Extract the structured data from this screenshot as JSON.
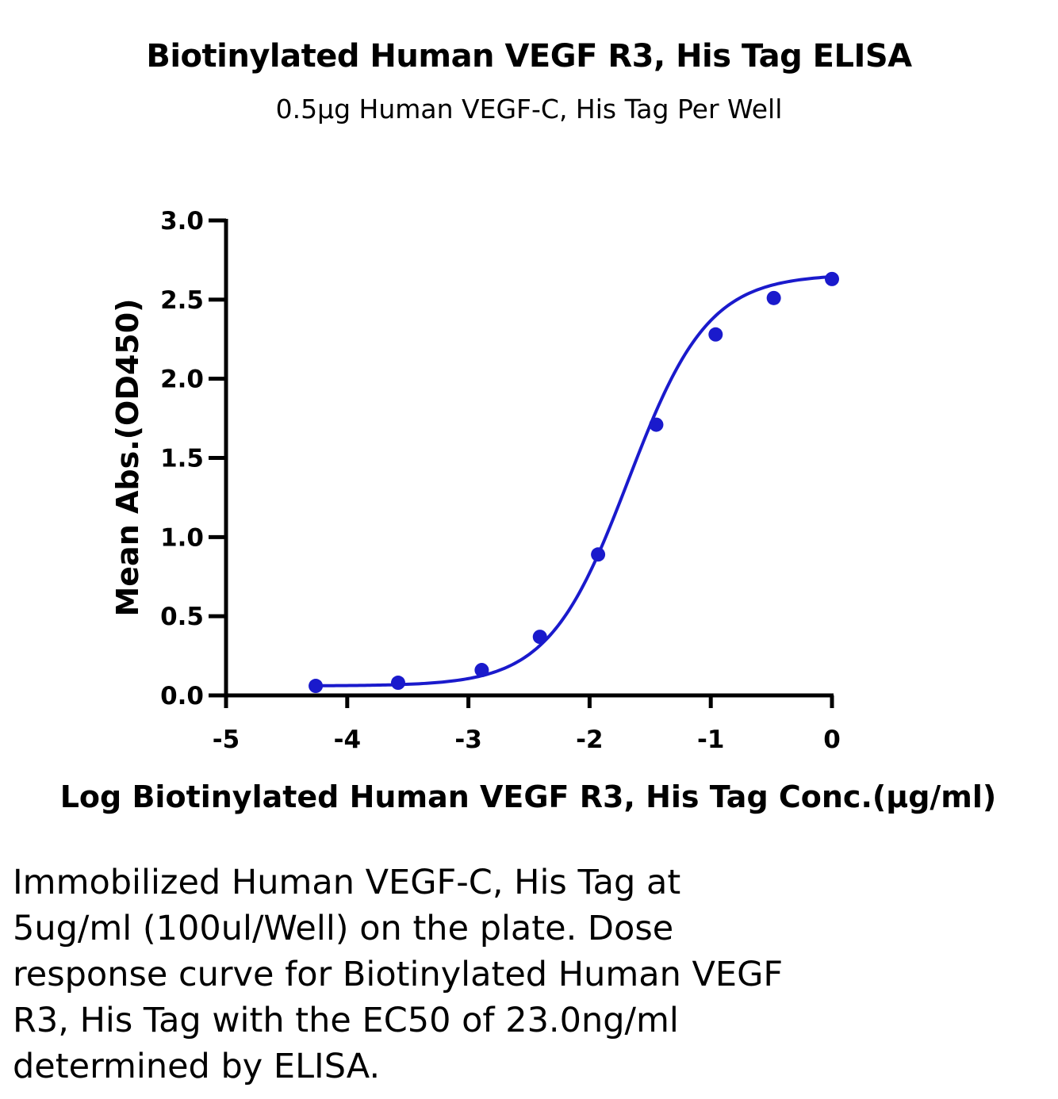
{
  "chart_data": {
    "type": "scatter",
    "title": "Biotinylated Human VEGF R3, His Tag ELISA",
    "subtitle": "0.5μg Human VEGF-C, His Tag Per Well",
    "xlabel": "Log Biotinylated Human VEGF R3, His Tag Conc.(μg/ml)",
    "ylabel": "Mean Abs.(OD450)",
    "xlim": [
      -5,
      0
    ],
    "ylim": [
      0,
      3.0
    ],
    "x_ticks": [
      "-5",
      "-4",
      "-3",
      "-2",
      "-1",
      "0"
    ],
    "y_ticks": [
      "0.0",
      "0.5",
      "1.0",
      "1.5",
      "2.0",
      "2.5",
      "3.0"
    ],
    "grid": false,
    "fit": "four-parameter logistic curve",
    "color": "#1a1acc",
    "series": [
      {
        "x": [
          -4.26,
          -3.58,
          -2.89,
          -2.41,
          -1.93,
          -1.45,
          -0.96,
          -0.48,
          0.0
        ],
        "y": [
          0.06,
          0.08,
          0.16,
          0.37,
          0.89,
          1.71,
          2.28,
          2.51,
          2.63
        ]
      }
    ]
  },
  "caption": {
    "lines": [
      "Immobilized Human VEGF-C, His Tag at",
      "5ug/ml (100ul/Well) on the plate. Dose",
      "response curve for Biotinylated Human VEGF",
      "R3, His Tag with the EC50 of 23.0ng/ml",
      "determined by ELISA."
    ]
  }
}
